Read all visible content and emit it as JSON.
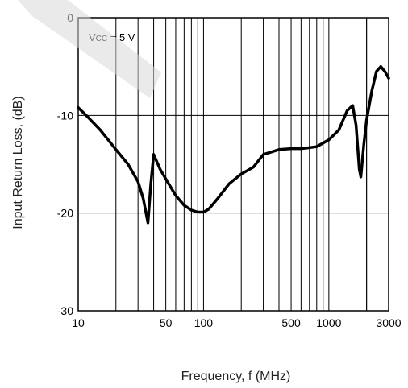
{
  "chart_data": {
    "type": "line",
    "title": "",
    "xlabel": "Frequency, f (MHz)",
    "ylabel": "Input Return Loss, (dB)",
    "x_scale": "log",
    "xlim": [
      10,
      3000
    ],
    "ylim": [
      -30,
      0
    ],
    "grid": true,
    "x_ticks": [
      10,
      50,
      100,
      500,
      1000,
      3000
    ],
    "x_tick_labels": [
      "10",
      "50",
      "100",
      "500",
      "1000",
      "3000"
    ],
    "y_ticks": [
      0,
      -10,
      -20,
      -30
    ],
    "y_tick_labels": [
      "0",
      "-10",
      "-20",
      "-30"
    ],
    "annotation": {
      "lines": [
        {
          "text": "V"
        },
        {
          "text": "CC",
          "sub": true
        },
        {
          "text": " = 5 V"
        }
      ]
    },
    "series": [
      {
        "name": "",
        "color": "#000000",
        "x": [
          10,
          12,
          15,
          20,
          25,
          30,
          33,
          36,
          38,
          40,
          45,
          50,
          60,
          70,
          80,
          90,
          100,
          110,
          130,
          160,
          200,
          250,
          300,
          400,
          500,
          600,
          700,
          800,
          1000,
          1200,
          1400,
          1550,
          1650,
          1750,
          1800,
          1900,
          2000,
          2200,
          2400,
          2600,
          2800,
          3000
        ],
        "y": [
          -9.2,
          -10.2,
          -11.5,
          -13.5,
          -15.0,
          -16.8,
          -18.5,
          -21.0,
          -17.0,
          -14.0,
          -15.5,
          -16.5,
          -18.2,
          -19.2,
          -19.7,
          -19.9,
          -19.9,
          -19.6,
          -18.5,
          -17.0,
          -16.0,
          -15.3,
          -14.0,
          -13.5,
          -13.4,
          -13.4,
          -13.3,
          -13.2,
          -12.5,
          -11.5,
          -9.5,
          -9.0,
          -11.0,
          -15.5,
          -16.3,
          -13.0,
          -10.5,
          -7.5,
          -5.5,
          -5.0,
          -5.5,
          -6.2
        ]
      }
    ]
  }
}
